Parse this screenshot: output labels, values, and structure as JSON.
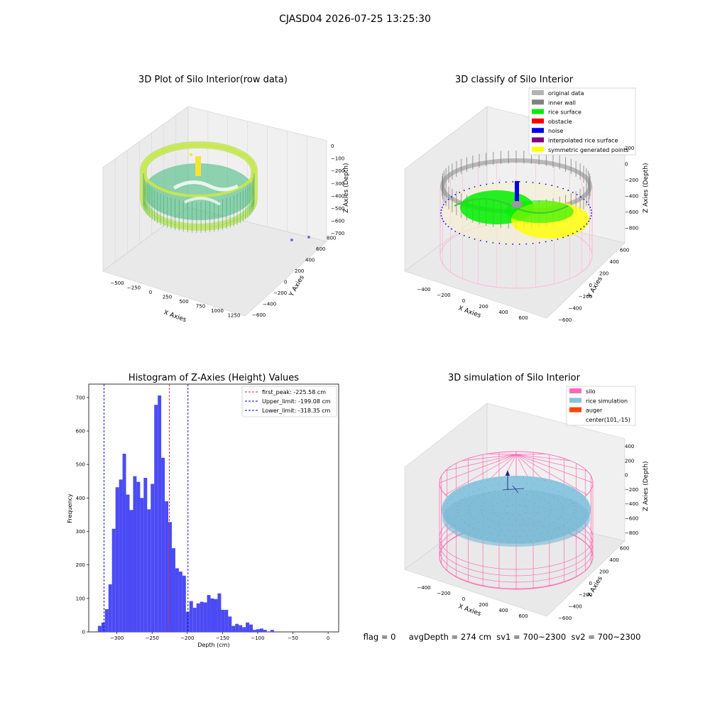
{
  "suptitle": "CJASD04 2026-07-25 13:25:30",
  "status_text": "flag = 0     avgDepth = 274 cm  sv1 = 700~2300  sv2 = 700~2300",
  "colors": {
    "hist_bar": "#4b4bf5",
    "peak_line": "#d62728",
    "limit_line": "#0000cc",
    "silo": "#ff69b4",
    "rice_sim": "#87c4dd",
    "auger": "#ff4500",
    "rice_surface": "#00ee00",
    "noise": "#0000ee",
    "original": "#b3b3b3",
    "inner_wall": "#808080",
    "obstacle": "#ff0000",
    "interp": "#800080",
    "symmetric": "#ffff00"
  },
  "chart_data": [
    {
      "type": "scatter",
      "subtype": "3d",
      "title": "3D Plot of Silo Interior(row data)",
      "xlabel": "X Axies",
      "ylabel": "Y Axies",
      "zlabel": "Z Axies (Depth)",
      "x_ticks": [
        "−500",
        "−250",
        "0",
        "250",
        "500",
        "750",
        "1000",
        "1250"
      ],
      "y_ticks": [
        "−600",
        "−400",
        "−200",
        "0",
        "200",
        "400",
        "600",
        "800"
      ],
      "z_ticks": [
        "0",
        "−100",
        "−200",
        "−300",
        "−400",
        "−500",
        "−600",
        "−700"
      ]
    },
    {
      "type": "scatter",
      "subtype": "3d",
      "title": "3D classify of Silo Interior",
      "xlabel": "X Axies",
      "ylabel": "Y Axies",
      "zlabel": "Z Axies (Depth)",
      "x_ticks": [
        "−400",
        "−200",
        "0",
        "200",
        "400",
        "600"
      ],
      "y_ticks": [
        "−600",
        "−400",
        "−200",
        "0",
        "200",
        "400",
        "600"
      ],
      "z_ticks": [
        "200",
        "0",
        "−200",
        "−400",
        "−600",
        "−800"
      ],
      "legend_position": "top-right",
      "legend": [
        "original data",
        "inner wall",
        "rice surface",
        "obstacle",
        "noise",
        "interpolated rice surface",
        "symmetric generated points"
      ]
    },
    {
      "type": "bar",
      "subtype": "histogram",
      "title": "Histogram of Z-Axies (Height) Values",
      "xlabel": "Depth (cm)",
      "ylabel": "Frequency",
      "xlim": [
        -340,
        15
      ],
      "ylim": [
        0,
        740
      ],
      "x_ticks": [
        -300,
        -250,
        -200,
        -150,
        -100,
        -50,
        0
      ],
      "y_ticks": [
        0,
        100,
        200,
        300,
        400,
        500,
        600,
        700
      ],
      "bin_start": -327,
      "bin_width": 5,
      "values": [
        18,
        28,
        68,
        142,
        308,
        432,
        455,
        532,
        410,
        364,
        465,
        448,
        400,
        460,
        366,
        442,
        678,
        706,
        520,
        390,
        328,
        250,
        190,
        180,
        168,
        60,
        92,
        72,
        85,
        90,
        88,
        110,
        100,
        98,
        115,
        66,
        66,
        46,
        18,
        24,
        20,
        14,
        28,
        22,
        6,
        8,
        10,
        6,
        0,
        6
      ],
      "legend_position": "top-right",
      "lines": [
        {
          "label": "first_peak: -225.58 cm",
          "x": -225.58,
          "style": "peak"
        },
        {
          "label": "Upper_limit: -199.08 cm",
          "x": -199.08,
          "style": "limit"
        },
        {
          "label": "Lower_limit: -318.35 cm",
          "x": -318.35,
          "style": "limit"
        }
      ]
    },
    {
      "type": "scatter",
      "subtype": "3d",
      "title": "3D simulation of Silo Interior",
      "xlabel": "X Axies",
      "ylabel": "Y Axies",
      "zlabel": "Z Axies (Depth)",
      "x_ticks": [
        "−400",
        "−200",
        "0",
        "200",
        "400",
        "600"
      ],
      "y_ticks": [
        "−600",
        "−400",
        "−200",
        "0",
        "200",
        "400",
        "600"
      ],
      "z_ticks": [
        "400",
        "200",
        "0",
        "−200",
        "−400",
        "−600",
        "−800"
      ],
      "legend_position": "top-right",
      "legend": [
        "silo",
        "rice simulation",
        "auger",
        "center(101,-15)"
      ]
    }
  ]
}
